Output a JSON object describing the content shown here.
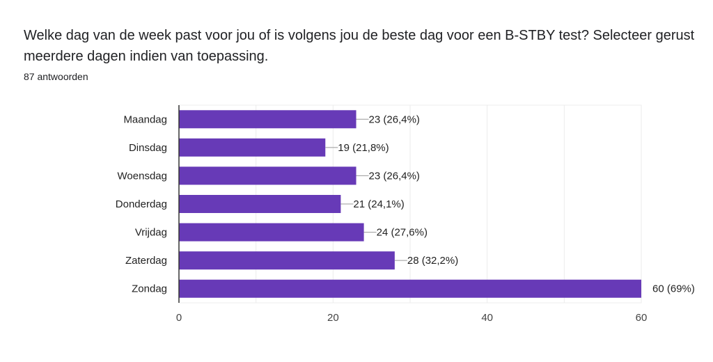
{
  "question": "Welke dag van de week past voor jou of is volgens jou de beste dag voor een B-STBY test? Selecteer gerust meerdere dagen indien van toepassing.",
  "response_count": "87 antwoorden",
  "chart_data": {
    "type": "bar",
    "orientation": "horizontal",
    "categories": [
      "Maandag",
      "Dinsdag",
      "Woensdag",
      "Donderdag",
      "Vrijdag",
      "Zaterdag",
      "Zondag"
    ],
    "values": [
      23,
      19,
      23,
      21,
      24,
      28,
      60
    ],
    "labels": [
      "23 (26,4%)",
      "19 (21,8%)",
      "23 (26,4%)",
      "21 (24,1%)",
      "24 (27,6%)",
      "28 (32,2%)",
      "60 (69%)"
    ],
    "xlim": [
      0,
      60
    ],
    "xticks": [
      "0",
      "20",
      "40",
      "60"
    ],
    "xtick_values": [
      0,
      20,
      40,
      60
    ],
    "grid_step": 10,
    "grid": true,
    "bar_color": "#673ab7"
  }
}
